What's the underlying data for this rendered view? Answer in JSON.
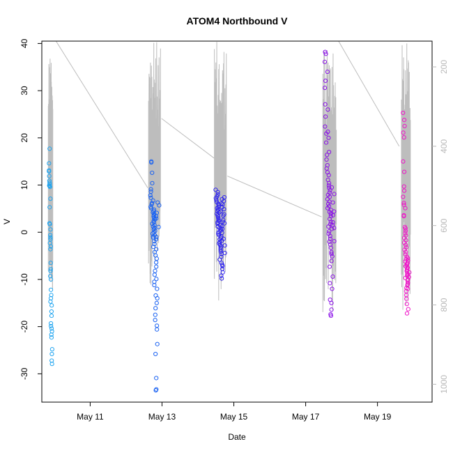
{
  "chart_data": {
    "type": "scatter",
    "title": "ATOM4 Northbound V",
    "xlabel": "Date",
    "ylabel": "V",
    "x_axis": {
      "kind": "date",
      "range": [
        "2018-05-09T15:40:00",
        "2018-05-20T12:30:00"
      ],
      "ticks": [
        {
          "value": "2018-05-11",
          "label": "May 11"
        },
        {
          "value": "2018-05-13",
          "label": "May 13"
        },
        {
          "value": "2018-05-15",
          "label": "May 15"
        },
        {
          "value": "2018-05-17",
          "label": "May 17"
        },
        {
          "value": "2018-05-19",
          "label": "May 19"
        }
      ]
    },
    "y_axis": {
      "range": [
        -36,
        40.5
      ],
      "ticks": [
        -30,
        -20,
        -10,
        0,
        10,
        20,
        30,
        40
      ]
    },
    "y_axis_right": {
      "reversed": true,
      "range": [
        1045,
        135
      ],
      "ticks": [
        200,
        400,
        600,
        800,
        1000
      ],
      "color": "#b8b8b8"
    },
    "grid": false,
    "legend": "none",
    "marker": "open-circle",
    "colors": {
      "start": "#1e90ff",
      "middle": "#3320ff",
      "end": "#ff14c8",
      "secondary_line": "#bdbdbd"
    },
    "point_clusters": [
      {
        "center": "2018-05-09T21:30:00",
        "spread_hours": 1.5,
        "color": "#1ea4f0",
        "values": [
          17.7,
          14.6,
          13.1,
          12.9,
          11.9,
          10.9,
          10.5,
          10.2,
          9.9,
          9.8,
          9.6,
          7.1,
          5.3,
          1.9,
          1.7,
          0.6,
          -0.6,
          -1.1,
          -1.5,
          -2.3,
          -3.0,
          -3.6,
          -6.5,
          -7.8,
          -8.2,
          -9.3,
          -10.0,
          -12.2,
          -13.3,
          -14.0,
          -14.7,
          -15.5,
          -16.8,
          -17.7,
          -19.3,
          -19.9,
          -20.4,
          -21.0,
          -21.7,
          -22.3,
          -24.8,
          -25.8,
          -27.2,
          -27.9
        ]
      },
      {
        "center": "2018-05-12T19:00:00",
        "spread_hours": 4,
        "color": "#1a62f2",
        "values": [
          15.0,
          14.8,
          12.6,
          10.4,
          9.1,
          8.6,
          7.8,
          7.3,
          6.7,
          6.2,
          5.9,
          5.4,
          5.1,
          4.8,
          4.5,
          4.2,
          3.9,
          3.6,
          3.3,
          3.0,
          2.7,
          2.4,
          2.1,
          1.8,
          1.5,
          1.2,
          0.9,
          0.6,
          0.3,
          0.0,
          -0.3,
          -0.6,
          -0.9,
          -1.2,
          -1.5,
          -1.9,
          -2.5,
          -3.1,
          -3.6,
          -4.2,
          -4.9,
          -5.6,
          -6.4,
          -7.3,
          -8.2,
          -9.0,
          -9.9,
          -10.5,
          -11.2,
          -12.0,
          -13.4,
          -14.0,
          -15.0,
          -16.1,
          -17.5,
          -18.6,
          -19.8,
          -20.6,
          -23.7,
          -25.8,
          -30.9,
          -33.3,
          -33.5,
          2.9,
          3.4,
          4.1,
          1.1,
          -1.0,
          6.3,
          5.7
        ]
      },
      {
        "center": "2018-05-14T15:00:00",
        "spread_hours": 4,
        "color": "#2d22f0",
        "values": [
          9.0,
          8.5,
          8.0,
          7.6,
          7.2,
          6.8,
          6.4,
          6.0,
          5.7,
          5.4,
          5.1,
          4.8,
          4.5,
          4.2,
          3.9,
          3.6,
          3.3,
          3.0,
          2.7,
          2.4,
          2.1,
          1.8,
          1.5,
          1.2,
          0.9,
          0.6,
          0.3,
          0.0,
          -0.3,
          -0.6,
          -0.9,
          -1.2,
          -1.5,
          -1.8,
          -2.1,
          -2.4,
          -2.7,
          -3.0,
          -3.3,
          -3.7,
          -4.1,
          -4.6,
          -5.2,
          -5.8,
          -6.5,
          -7.2,
          -7.8,
          -8.5,
          -9.2,
          -9.8,
          4.4,
          5.3,
          6.1,
          7.0,
          2.6,
          1.3,
          -0.1,
          -1.4,
          3.8,
          2.2,
          0.7,
          5.9,
          4.9,
          3.5,
          1.9,
          -2.8,
          -4.4,
          -6.9,
          6.6,
          7.4
        ]
      },
      {
        "center": "2018-05-17T16:00:00",
        "spread_hours": 4.5,
        "color": "#8a10e8",
        "values": [
          38.2,
          37.8,
          36.1,
          34.0,
          32.1,
          30.6,
          27.1,
          26.0,
          24.5,
          22.4,
          21.3,
          20.9,
          20.0,
          19.0,
          17.0,
          16.4,
          15.4,
          14.2,
          13.5,
          12.7,
          12.1,
          11.1,
          10.4,
          9.9,
          9.4,
          8.9,
          8.4,
          7.9,
          7.5,
          7.0,
          6.5,
          6.0,
          5.5,
          5.1,
          4.7,
          4.3,
          3.9,
          3.4,
          2.8,
          2.2,
          1.7,
          1.2,
          0.7,
          0.2,
          -0.3,
          -0.8,
          -1.4,
          -2.0,
          -2.6,
          -3.3,
          -4.2,
          -5.1,
          -6.1,
          -7.3,
          -9.4,
          -10.8,
          -12.0,
          -14.3,
          -15.0,
          -16.4,
          -17.4,
          -17.7,
          9.5,
          8.1,
          6.3,
          4.4,
          1.5,
          -1.9,
          -4.6,
          0.9,
          2.1,
          3.6
        ]
      },
      {
        "center": "2018-05-19T19:00:00",
        "spread_hours": 3,
        "color": "#ef14c8",
        "values": [
          25.3,
          23.8,
          22.5,
          21.1,
          20.1,
          15.0,
          12.8,
          9.7,
          8.8,
          7.5,
          6.2,
          5.8,
          5.1,
          3.6,
          3.4,
          1.1,
          0.8,
          0.3,
          -0.2,
          -0.7,
          -1.2,
          -1.7,
          -2.2,
          -2.7,
          -3.2,
          -3.7,
          -4.2,
          -4.7,
          -5.2,
          -5.7,
          -6.2,
          -6.7,
          -7.2,
          -7.7,
          -8.2,
          -8.7,
          -9.2,
          -9.7,
          -10.2,
          -10.7,
          -11.2,
          -11.8,
          -12.5,
          -13.3,
          -14.1,
          -15.2,
          -16.3,
          -17.2,
          -6.0,
          -7.0,
          -8.0,
          -9.0,
          -10.0,
          -11.0,
          -12.0,
          -5.5,
          -6.5,
          -7.5,
          -8.5,
          -9.5
        ]
      }
    ],
    "secondary_series": {
      "description_axis": "right",
      "segments": [
        {
          "center": "2018-05-09T21:30:00",
          "spread_hours": 1.5,
          "top": 155,
          "bottom": 780
        },
        {
          "center": "2018-05-12T19:00:00",
          "spread_hours": 4,
          "top": 135,
          "bottom": 750
        },
        {
          "center": "2018-05-14T15:00:00",
          "spread_hours": 4,
          "top": 135,
          "bottom": 790
        },
        {
          "center": "2018-05-17T16:00:00",
          "spread_hours": 4.5,
          "top": 135,
          "bottom": 820
        },
        {
          "center": "2018-05-19T19:00:00",
          "spread_hours": 3,
          "top": 135,
          "bottom": 820
        }
      ],
      "connectors": [
        {
          "from": [
            "2018-05-10T01:10:00",
            135
          ],
          "to": [
            "2018-05-12T14:30:00",
            505
          ]
        },
        {
          "from": [
            "2018-05-12T23:40:00",
            330
          ],
          "to": [
            "2018-05-14T10:50:00",
            430
          ]
        },
        {
          "from": [
            "2018-05-14T19:40:00",
            475
          ],
          "to": [
            "2018-05-17T10:40:00",
            578
          ]
        },
        {
          "from": [
            "2018-05-17T22:00:00",
            135
          ],
          "to": [
            "2018-05-19T14:30:00",
            400
          ]
        }
      ]
    }
  }
}
